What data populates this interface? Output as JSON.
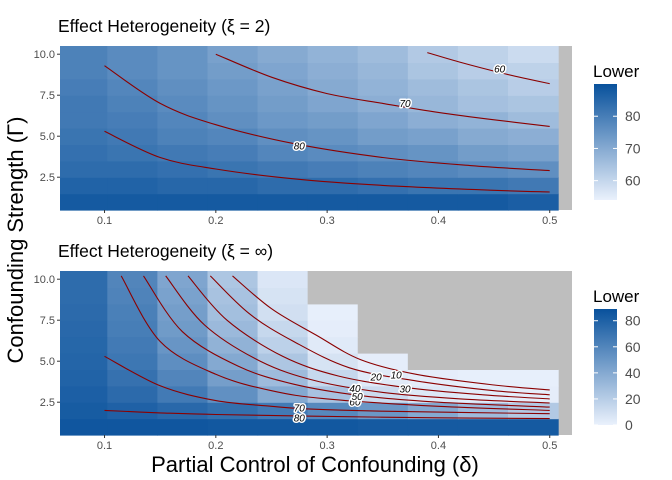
{
  "chart_data": [
    {
      "type": "heatmap",
      "title": "Effect Heterogeneity (ξ = 2)",
      "xlabel": "Partial Control of Confounding (δ)",
      "ylabel": "Confounding Strength (Γ)",
      "x_ticks": [
        "0.1",
        "0.2",
        "0.3",
        "0.4",
        "0.5"
      ],
      "y_ticks": [
        "2.5",
        "5.0",
        "7.5",
        "10.0"
      ],
      "xlim": [
        0.06,
        0.52
      ],
      "ylim": [
        0.5,
        10.5
      ],
      "x": [
        0.08,
        0.125,
        0.17,
        0.215,
        0.26,
        0.305,
        0.35,
        0.395,
        0.44,
        0.485
      ],
      "y": [
        1,
        2,
        3,
        4,
        5,
        6,
        7,
        8,
        9,
        10
      ],
      "values": [
        [
          88,
          88,
          88,
          88,
          88,
          88,
          88,
          88,
          88,
          87
        ],
        [
          86,
          86,
          85,
          85,
          84,
          84,
          83,
          82,
          82,
          81
        ],
        [
          84,
          84,
          83,
          82,
          81,
          80,
          79,
          78,
          77,
          76
        ],
        [
          83,
          82,
          81,
          80,
          78,
          77,
          76,
          75,
          73,
          72
        ],
        [
          82,
          81,
          79,
          78,
          76,
          75,
          73,
          72,
          70,
          69
        ],
        [
          81,
          80,
          78,
          76,
          74,
          73,
          71,
          69,
          68,
          66
        ],
        [
          81,
          79,
          77,
          75,
          73,
          71,
          69,
          67,
          65,
          64
        ],
        [
          80,
          78,
          76,
          74,
          72,
          70,
          68,
          66,
          64,
          62
        ],
        [
          79,
          77,
          75,
          73,
          71,
          69,
          67,
          64,
          62,
          61
        ],
        [
          79,
          77,
          75,
          72,
          70,
          68,
          66,
          63,
          61,
          59
        ]
      ],
      "contours": [
        {
          "level": 80,
          "label": "80",
          "points": [
            [
              0.1,
              5.3
            ],
            [
              0.15,
              3.7
            ],
            [
              0.2,
              3.0
            ],
            [
              0.27,
              2.4
            ],
            [
              0.35,
              2.0
            ],
            [
              0.45,
              1.7
            ],
            [
              0.5,
              1.6
            ]
          ]
        },
        {
          "level": 70,
          "label": "70",
          "points": [
            [
              0.1,
              9.3
            ],
            [
              0.15,
              7.0
            ],
            [
              0.2,
              5.7
            ],
            [
              0.27,
              4.55
            ],
            [
              0.35,
              3.7
            ],
            [
              0.43,
              3.2
            ],
            [
              0.5,
              2.9
            ]
          ]
        },
        {
          "level": 60,
          "label": "60",
          "points": [
            [
              0.2,
              10.0
            ],
            [
              0.25,
              8.6
            ],
            [
              0.3,
              7.6
            ],
            [
              0.35,
              7.0
            ],
            [
              0.4,
              6.45
            ],
            [
              0.45,
              6.0
            ],
            [
              0.5,
              5.6
            ]
          ]
        },
        {
          "level": 50,
          "label": "",
          "points": [
            [
              0.39,
              10.1
            ],
            [
              0.42,
              9.5
            ],
            [
              0.46,
              8.8
            ],
            [
              0.5,
              8.2
            ]
          ]
        }
      ],
      "contour_labels": [
        {
          "text": "80",
          "x": 0.275,
          "y": 4.4
        },
        {
          "text": "70",
          "x": 0.37,
          "y": 7.0
        },
        {
          "text": "60",
          "x": 0.455,
          "y": 9.1
        }
      ],
      "legend": {
        "title": "Lower",
        "ticks": [
          60,
          70,
          80
        ],
        "min": 54,
        "max": 90
      }
    },
    {
      "type": "heatmap",
      "title": "Effect Heterogeneity (ξ = ∞)",
      "xlabel": "Partial Control of Confounding (δ)",
      "ylabel": "Confounding Strength (Γ)",
      "x_ticks": [
        "0.1",
        "0.2",
        "0.3",
        "0.4",
        "0.5"
      ],
      "y_ticks": [
        "2.5",
        "5.0",
        "7.5",
        "10.0"
      ],
      "xlim": [
        0.06,
        0.52
      ],
      "ylim": [
        0.5,
        10.5
      ],
      "x": [
        0.08,
        0.125,
        0.17,
        0.215,
        0.26,
        0.305,
        0.35,
        0.395,
        0.44,
        0.485
      ],
      "y": [
        1,
        2,
        3,
        4,
        5,
        6,
        7,
        8,
        9,
        10
      ],
      "missing_color": "#bebebe",
      "values": [
        [
          86,
          86,
          86,
          85,
          85,
          85,
          84,
          84,
          84,
          84
        ],
        [
          83,
          80,
          76,
          72,
          66,
          58,
          50,
          40,
          30,
          22
        ],
        [
          81,
          75,
          66,
          54,
          40,
          26,
          12,
          5,
          3,
          2
        ],
        [
          79,
          71,
          60,
          46,
          30,
          14,
          4,
          2,
          1,
          1
        ],
        [
          78,
          68,
          55,
          40,
          24,
          8,
          2,
          null,
          null,
          null
        ],
        [
          77,
          66,
          51,
          35,
          18,
          4,
          null,
          null,
          null,
          null
        ],
        [
          76,
          64,
          48,
          31,
          14,
          2,
          null,
          null,
          null,
          null
        ],
        [
          75,
          63,
          46,
          28,
          10,
          1,
          null,
          null,
          null,
          null
        ],
        [
          74,
          61,
          44,
          26,
          8,
          null,
          null,
          null,
          null,
          null
        ],
        [
          74,
          60,
          42,
          24,
          6,
          null,
          null,
          null,
          null,
          null
        ]
      ],
      "contours": [
        {
          "level": 80,
          "label": "80",
          "points": [
            [
              0.1,
              2.0
            ],
            [
              0.15,
              1.85
            ],
            [
              0.2,
              1.75
            ],
            [
              0.28,
              1.65
            ],
            [
              0.4,
              1.55
            ],
            [
              0.5,
              1.5
            ]
          ]
        },
        {
          "level": 70,
          "label": "70",
          "points": [
            [
              0.1,
              5.3
            ],
            [
              0.15,
              3.5
            ],
            [
              0.2,
              2.6
            ],
            [
              0.25,
              2.25
            ],
            [
              0.28,
              2.1
            ],
            [
              0.35,
              1.95
            ],
            [
              0.5,
              1.8
            ]
          ]
        },
        {
          "level": 60,
          "label": "60",
          "points": [
            [
              0.115,
              10.2
            ],
            [
              0.15,
              6.2
            ],
            [
              0.2,
              4.2
            ],
            [
              0.25,
              3.2
            ],
            [
              0.3,
              2.7
            ],
            [
              0.4,
              2.25
            ],
            [
              0.5,
              2.0
            ]
          ]
        },
        {
          "level": 50,
          "label": "50",
          "points": [
            [
              0.135,
              10.2
            ],
            [
              0.17,
              6.8
            ],
            [
              0.22,
              4.7
            ],
            [
              0.27,
              3.6
            ],
            [
              0.33,
              2.9
            ],
            [
              0.4,
              2.5
            ],
            [
              0.5,
              2.2
            ]
          ]
        },
        {
          "level": 40,
          "label": "40",
          "points": [
            [
              0.155,
              10.2
            ],
            [
              0.19,
              7.2
            ],
            [
              0.24,
              5.0
            ],
            [
              0.29,
              3.8
            ],
            [
              0.35,
              3.1
            ],
            [
              0.42,
              2.7
            ],
            [
              0.5,
              2.45
            ]
          ]
        },
        {
          "level": 30,
          "label": "30",
          "points": [
            [
              0.175,
              10.2
            ],
            [
              0.21,
              7.5
            ],
            [
              0.26,
              5.3
            ],
            [
              0.31,
              4.1
            ],
            [
              0.37,
              3.4
            ],
            [
              0.44,
              2.95
            ],
            [
              0.5,
              2.7
            ]
          ]
        },
        {
          "level": 20,
          "label": "20",
          "points": [
            [
              0.195,
              10.2
            ],
            [
              0.23,
              7.9
            ],
            [
              0.27,
              6.2
            ],
            [
              0.32,
              4.6
            ],
            [
              0.38,
              3.8
            ],
            [
              0.45,
              3.2
            ],
            [
              0.5,
              2.95
            ]
          ]
        },
        {
          "level": 10,
          "label": "10",
          "points": [
            [
              0.215,
              10.2
            ],
            [
              0.25,
              8.2
            ],
            [
              0.29,
              6.6
            ],
            [
              0.33,
              5.1
            ],
            [
              0.38,
              4.2
            ],
            [
              0.45,
              3.55
            ],
            [
              0.5,
              3.25
            ]
          ]
        }
      ],
      "contour_labels": [
        {
          "text": "80",
          "x": 0.275,
          "y": 1.55
        },
        {
          "text": "70",
          "x": 0.275,
          "y": 2.15
        },
        {
          "text": "60",
          "x": 0.325,
          "y": 2.5
        },
        {
          "text": "50",
          "x": 0.327,
          "y": 2.85
        },
        {
          "text": "40",
          "x": 0.325,
          "y": 3.35
        },
        {
          "text": "30",
          "x": 0.37,
          "y": 3.3
        },
        {
          "text": "20",
          "x": 0.344,
          "y": 4.05
        },
        {
          "text": "10",
          "x": 0.362,
          "y": 4.15
        }
      ],
      "legend": {
        "title": "Lower",
        "ticks": [
          0,
          20,
          40,
          60,
          80
        ],
        "min": 0,
        "max": 89
      }
    }
  ],
  "shared_axes": {
    "xlabel": "Partial Control of Confounding (δ)",
    "ylabel": "Confounding Strength (Γ)"
  },
  "colors": {
    "low": "#eaf1fc",
    "high": "#08519c",
    "contour": "#8b0000",
    "missing": "#bebebe",
    "tick": "#4d4d4d"
  }
}
